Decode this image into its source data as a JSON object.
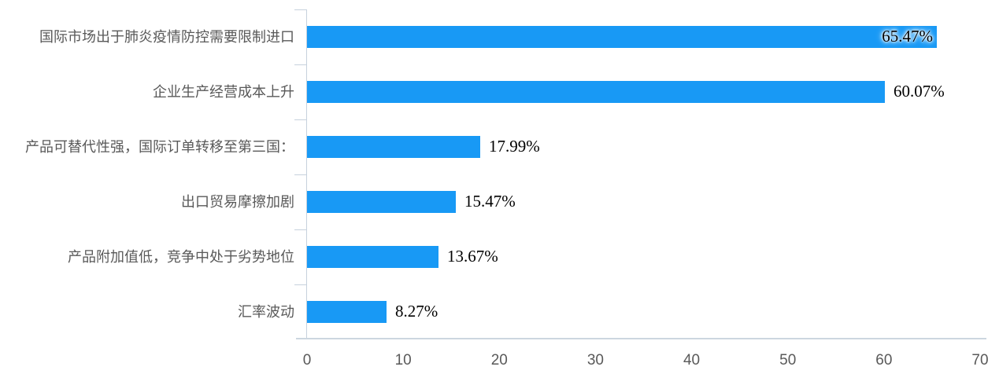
{
  "chart_data": {
    "type": "bar",
    "orientation": "horizontal",
    "categories": [
      "国际市场出于肺炎疫情防控需要限制进口",
      "企业生产经营成本上升",
      "产品可替代性强，国际订单转移至第三国：",
      "出口贸易摩擦加剧",
      "产品附加值低，竞争中处于劣势地位",
      "汇率波动"
    ],
    "values": [
      65.47,
      60.07,
      17.99,
      15.47,
      13.67,
      8.27
    ],
    "value_labels": [
      "65.47%",
      "60.07%",
      "17.99%",
      "15.47%",
      "13.67%",
      "8.27%"
    ],
    "x_ticks": [
      "0",
      "10",
      "20",
      "30",
      "40",
      "50",
      "60",
      "70"
    ],
    "xlim": [
      0,
      70
    ],
    "grid": false,
    "legend": false,
    "bar_color": "#1899F5",
    "axis_color": "#c6d1dd",
    "category_label_color": "#595959",
    "tick_label_color": "#595959",
    "value_label_color": "#000000"
  }
}
